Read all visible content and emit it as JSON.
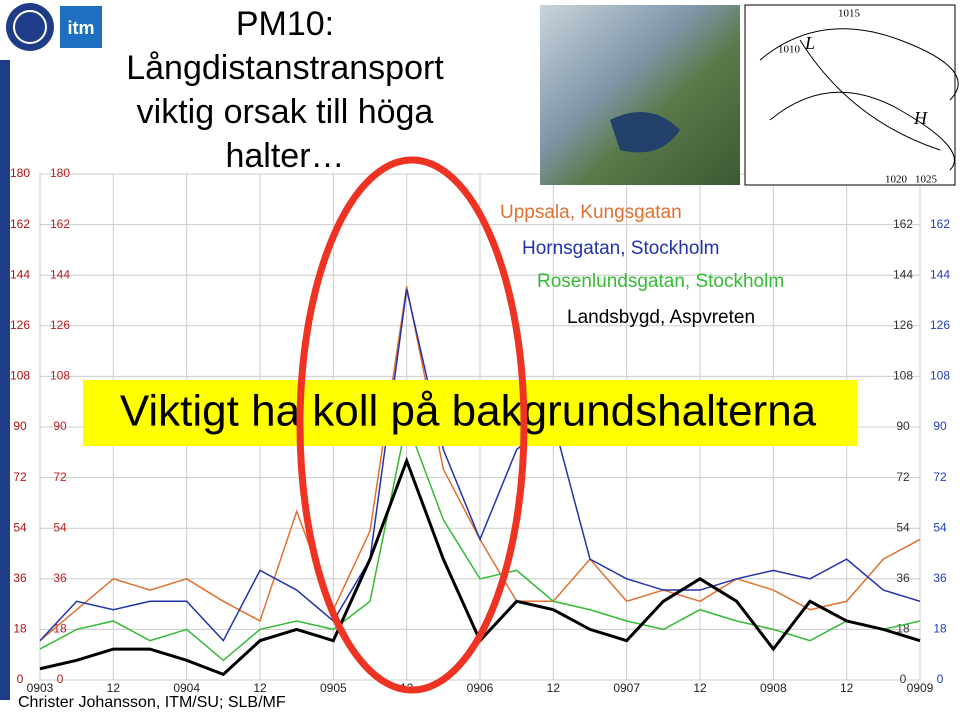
{
  "header": {
    "title_lines": [
      "PM10:",
      "Långdistanstransport",
      "viktig orsak till höga",
      "halter…"
    ],
    "logo": "itm"
  },
  "map_labels": [
    "L",
    "H",
    "1015",
    "1010",
    "1020",
    "1025"
  ],
  "callout": "Viktigt ha koll på bakgrundshalterna",
  "footer": "Christer Johansson, ITM/SU; SLB/MF",
  "chart_data": {
    "type": "line",
    "x": [
      0,
      6,
      12,
      18,
      24,
      30,
      36,
      42,
      48,
      54,
      60,
      66,
      72,
      78,
      84,
      90,
      96,
      102,
      108,
      114,
      120,
      126,
      132,
      138,
      144
    ],
    "xlim": [
      0,
      144
    ],
    "xticks": [
      {
        "value": 0,
        "label": "0903"
      },
      12,
      {
        "value": 24,
        "label": "0904"
      },
      {
        "value": 36,
        "label": "12"
      },
      {
        "value": 48,
        "label": "0905"
      },
      {
        "value": 60,
        "label": "12"
      },
      {
        "value": 72,
        "label": "0906"
      },
      {
        "value": 84,
        "label": "12"
      },
      {
        "value": 96,
        "label": "0907"
      },
      {
        "value": 108,
        "label": "12"
      },
      {
        "value": 120,
        "label": "0908"
      },
      {
        "value": 132,
        "label": "12"
      },
      {
        "value": 144,
        "label": "0909"
      }
    ],
    "ylim": [
      0,
      180
    ],
    "yticks": [
      0,
      18,
      36,
      54,
      72,
      90,
      108,
      126,
      144,
      162,
      180
    ],
    "grid": true,
    "series": [
      {
        "name": "Uppsala, Kungsgatan",
        "color": "#e07030",
        "values": [
          14,
          25,
          36,
          32,
          36,
          28,
          21,
          60,
          25,
          53,
          140,
          75,
          50,
          28,
          28,
          43,
          28,
          32,
          28,
          36,
          32,
          25,
          28,
          43,
          50
        ]
      },
      {
        "name": "Hornsgatan, Stockholm",
        "color": "#2233aa",
        "values": [
          14,
          28,
          25,
          28,
          28,
          14,
          39,
          32,
          21,
          43,
          139,
          82,
          50,
          82,
          92,
          43,
          36,
          32,
          32,
          36,
          39,
          36,
          43,
          32,
          28
        ]
      },
      {
        "name": "Rosenlundsgatan, Stockholm",
        "color": "#33bb33",
        "values": [
          11,
          18,
          21,
          14,
          18,
          7,
          18,
          21,
          18,
          28,
          92,
          57,
          36,
          39,
          28,
          25,
          21,
          18,
          25,
          21,
          18,
          14,
          21,
          18,
          21
        ]
      },
      {
        "name": "Landsbygd, Aspvreten",
        "color": "#000000",
        "values": [
          4,
          7,
          11,
          11,
          7,
          2,
          14,
          18,
          14,
          43,
          78,
          43,
          14,
          28,
          25,
          18,
          14,
          28,
          36,
          28,
          11,
          28,
          21,
          18,
          14
        ]
      }
    ]
  }
}
